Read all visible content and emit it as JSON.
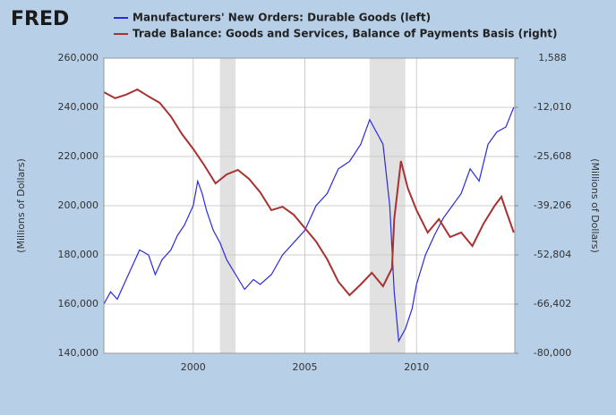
{
  "brand": "FRED",
  "chart_data": {
    "type": "line",
    "y_label": "(Millions of Dollars)",
    "y2_label": "(Millions of Dollars)",
    "xlim": [
      1996,
      2014.4
    ],
    "xticks": [
      2000,
      2005,
      2010
    ],
    "ylim": [
      140000,
      260000
    ],
    "yticks": [
      {
        "value": 140000,
        "label": "140,000"
      },
      {
        "value": 160000,
        "label": "160,000"
      },
      {
        "value": 180000,
        "label": "180,000"
      },
      {
        "value": 200000,
        "label": "200,000"
      },
      {
        "value": 220000,
        "label": "220,000"
      },
      {
        "value": 240000,
        "label": "240,000"
      },
      {
        "value": 260000,
        "label": "260,000"
      }
    ],
    "y2lim": [
      -80000,
      1588
    ],
    "y2ticks": [
      {
        "value": -80000,
        "label": "-80,000"
      },
      {
        "value": -66402,
        "label": "-66,402"
      },
      {
        "value": -52804,
        "label": "-52,804"
      },
      {
        "value": -39206,
        "label": "-39,206"
      },
      {
        "value": -25608,
        "label": "-25,608"
      },
      {
        "value": -12010,
        "label": "-12,010"
      },
      {
        "value": 1588,
        "label": "1,588"
      }
    ],
    "recessions": [
      [
        2001.2,
        2001.9
      ],
      [
        2007.9,
        2009.5
      ]
    ],
    "recession_color": "#e1e1e1",
    "series": [
      {
        "name": "Manufacturers' New Orders: Durable Goods (left)",
        "color": "#2a2ae0",
        "axis": "y",
        "x": [
          1996.0,
          1996.3,
          1996.6,
          1997.0,
          1997.3,
          1997.6,
          1998.0,
          1998.3,
          1998.6,
          1999.0,
          1999.3,
          1999.6,
          2000.0,
          2000.2,
          2000.4,
          2000.6,
          2000.9,
          2001.2,
          2001.5,
          2001.9,
          2002.3,
          2002.7,
          2003.0,
          2003.5,
          2004.0,
          2004.5,
          2005.0,
          2005.5,
          2006.0,
          2006.5,
          2007.0,
          2007.5,
          2007.9,
          2008.2,
          2008.5,
          2008.8,
          2009.0,
          2009.2,
          2009.5,
          2009.8,
          2010.0,
          2010.4,
          2010.8,
          2011.2,
          2011.6,
          2012.0,
          2012.4,
          2012.8,
          2013.2,
          2013.6,
          2014.0,
          2014.35
        ],
        "values": [
          160000,
          165000,
          162000,
          170000,
          176000,
          182000,
          180000,
          172000,
          178000,
          182000,
          188000,
          192000,
          200000,
          210000,
          205000,
          198000,
          190000,
          185000,
          178000,
          172000,
          166000,
          170000,
          168000,
          172000,
          180000,
          185000,
          190000,
          200000,
          205000,
          215000,
          218000,
          225000,
          235000,
          230000,
          225000,
          200000,
          165000,
          145000,
          150000,
          158000,
          168000,
          180000,
          188000,
          195000,
          200000,
          205000,
          215000,
          210000,
          225000,
          230000,
          232000,
          240000
        ]
      },
      {
        "name": "Trade Balance: Goods and Services, Balance of Payments Basis (right)",
        "color": "#a83232",
        "axis": "y2",
        "x": [
          1996.0,
          1996.5,
          1997.0,
          1997.5,
          1998.0,
          1998.5,
          1999.0,
          1999.5,
          2000.0,
          2000.5,
          2001.0,
          2001.5,
          2002.0,
          2002.5,
          2003.0,
          2003.5,
          2004.0,
          2004.5,
          2005.0,
          2005.5,
          2006.0,
          2006.5,
          2007.0,
          2007.5,
          2008.0,
          2008.5,
          2008.9,
          2009.0,
          2009.3,
          2009.6,
          2010.0,
          2010.5,
          2011.0,
          2011.5,
          2012.0,
          2012.5,
          2013.0,
          2013.5,
          2013.8,
          2014.0,
          2014.35
        ],
        "values": [
          -7810,
          -9500,
          -8500,
          -7070,
          -9000,
          -10780,
          -14500,
          -19430,
          -23500,
          -28080,
          -33030,
          -30550,
          -29320,
          -31790,
          -35500,
          -40440,
          -39500,
          -41680,
          -45390,
          -49100,
          -54040,
          -60220,
          -63930,
          -60960,
          -57750,
          -61460,
          -56510,
          -42910,
          -26840,
          -34260,
          -40440,
          -46620,
          -42910,
          -47860,
          -46620,
          -50330,
          -44150,
          -39210,
          -36730,
          -40440,
          -46620
        ]
      }
    ]
  }
}
